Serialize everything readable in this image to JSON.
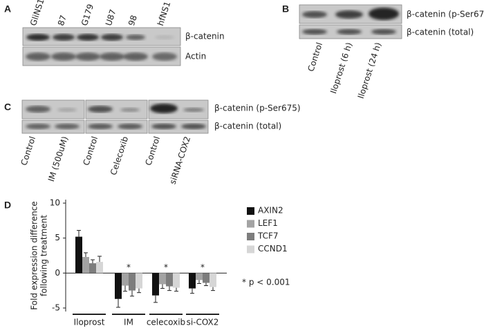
{
  "panels": {
    "a": {
      "letter": "A",
      "lanes": [
        "GliNS1",
        "87",
        "G179",
        "U87",
        "98",
        "hfNS1"
      ],
      "rows": [
        "β-catenin",
        "Actin"
      ]
    },
    "b": {
      "letter": "B",
      "lanes": [
        "Control",
        "Iloprost (6 h)",
        "Iloprost (24 h)"
      ],
      "rows": [
        "β-catenin (p-Ser675)",
        "β-catenin (total)"
      ]
    },
    "c": {
      "letter": "C",
      "lanes": [
        "Control",
        "IM (500uM)",
        "Control",
        "Celecoxib",
        "Control",
        "siRNA-COX2"
      ],
      "rows": [
        "β-catenin (p-Ser675)",
        "β-catenin (total)"
      ]
    },
    "d": {
      "letter": "D"
    }
  },
  "chart_data": {
    "type": "bar",
    "y_label": [
      "Fold expression difference",
      "following treatment"
    ],
    "categories": [
      "Iloprost",
      "IM",
      "celecoxib",
      "si-COX2"
    ],
    "series": [
      {
        "name": "AXIN2",
        "color": "#111111",
        "values": [
          5.2,
          -3.7,
          -3.2,
          -2.2
        ],
        "errors": [
          0.9,
          1.2,
          1.0,
          0.7
        ]
      },
      {
        "name": "LEF1",
        "color": "#a3a3a3",
        "values": [
          2.3,
          -1.8,
          -1.6,
          -1.0
        ],
        "errors": [
          0.6,
          0.8,
          0.6,
          0.5
        ]
      },
      {
        "name": "TCF7",
        "color": "#7d7d7d",
        "values": [
          1.4,
          -2.5,
          -1.9,
          -1.4
        ],
        "errors": [
          0.5,
          0.8,
          0.6,
          0.4
        ]
      },
      {
        "name": "CCND1",
        "color": "#d6d6d6",
        "values": [
          1.6,
          -2.2,
          -2.1,
          -2.0
        ],
        "errors": [
          0.8,
          0.6,
          0.5,
          0.5
        ]
      }
    ],
    "annotations": [
      "*",
      "*",
      "*"
    ],
    "note": "* p < 0.001",
    "ylim": [
      -5.5,
      10.5
    ],
    "yticks": [
      -5,
      0,
      5,
      10
    ]
  }
}
